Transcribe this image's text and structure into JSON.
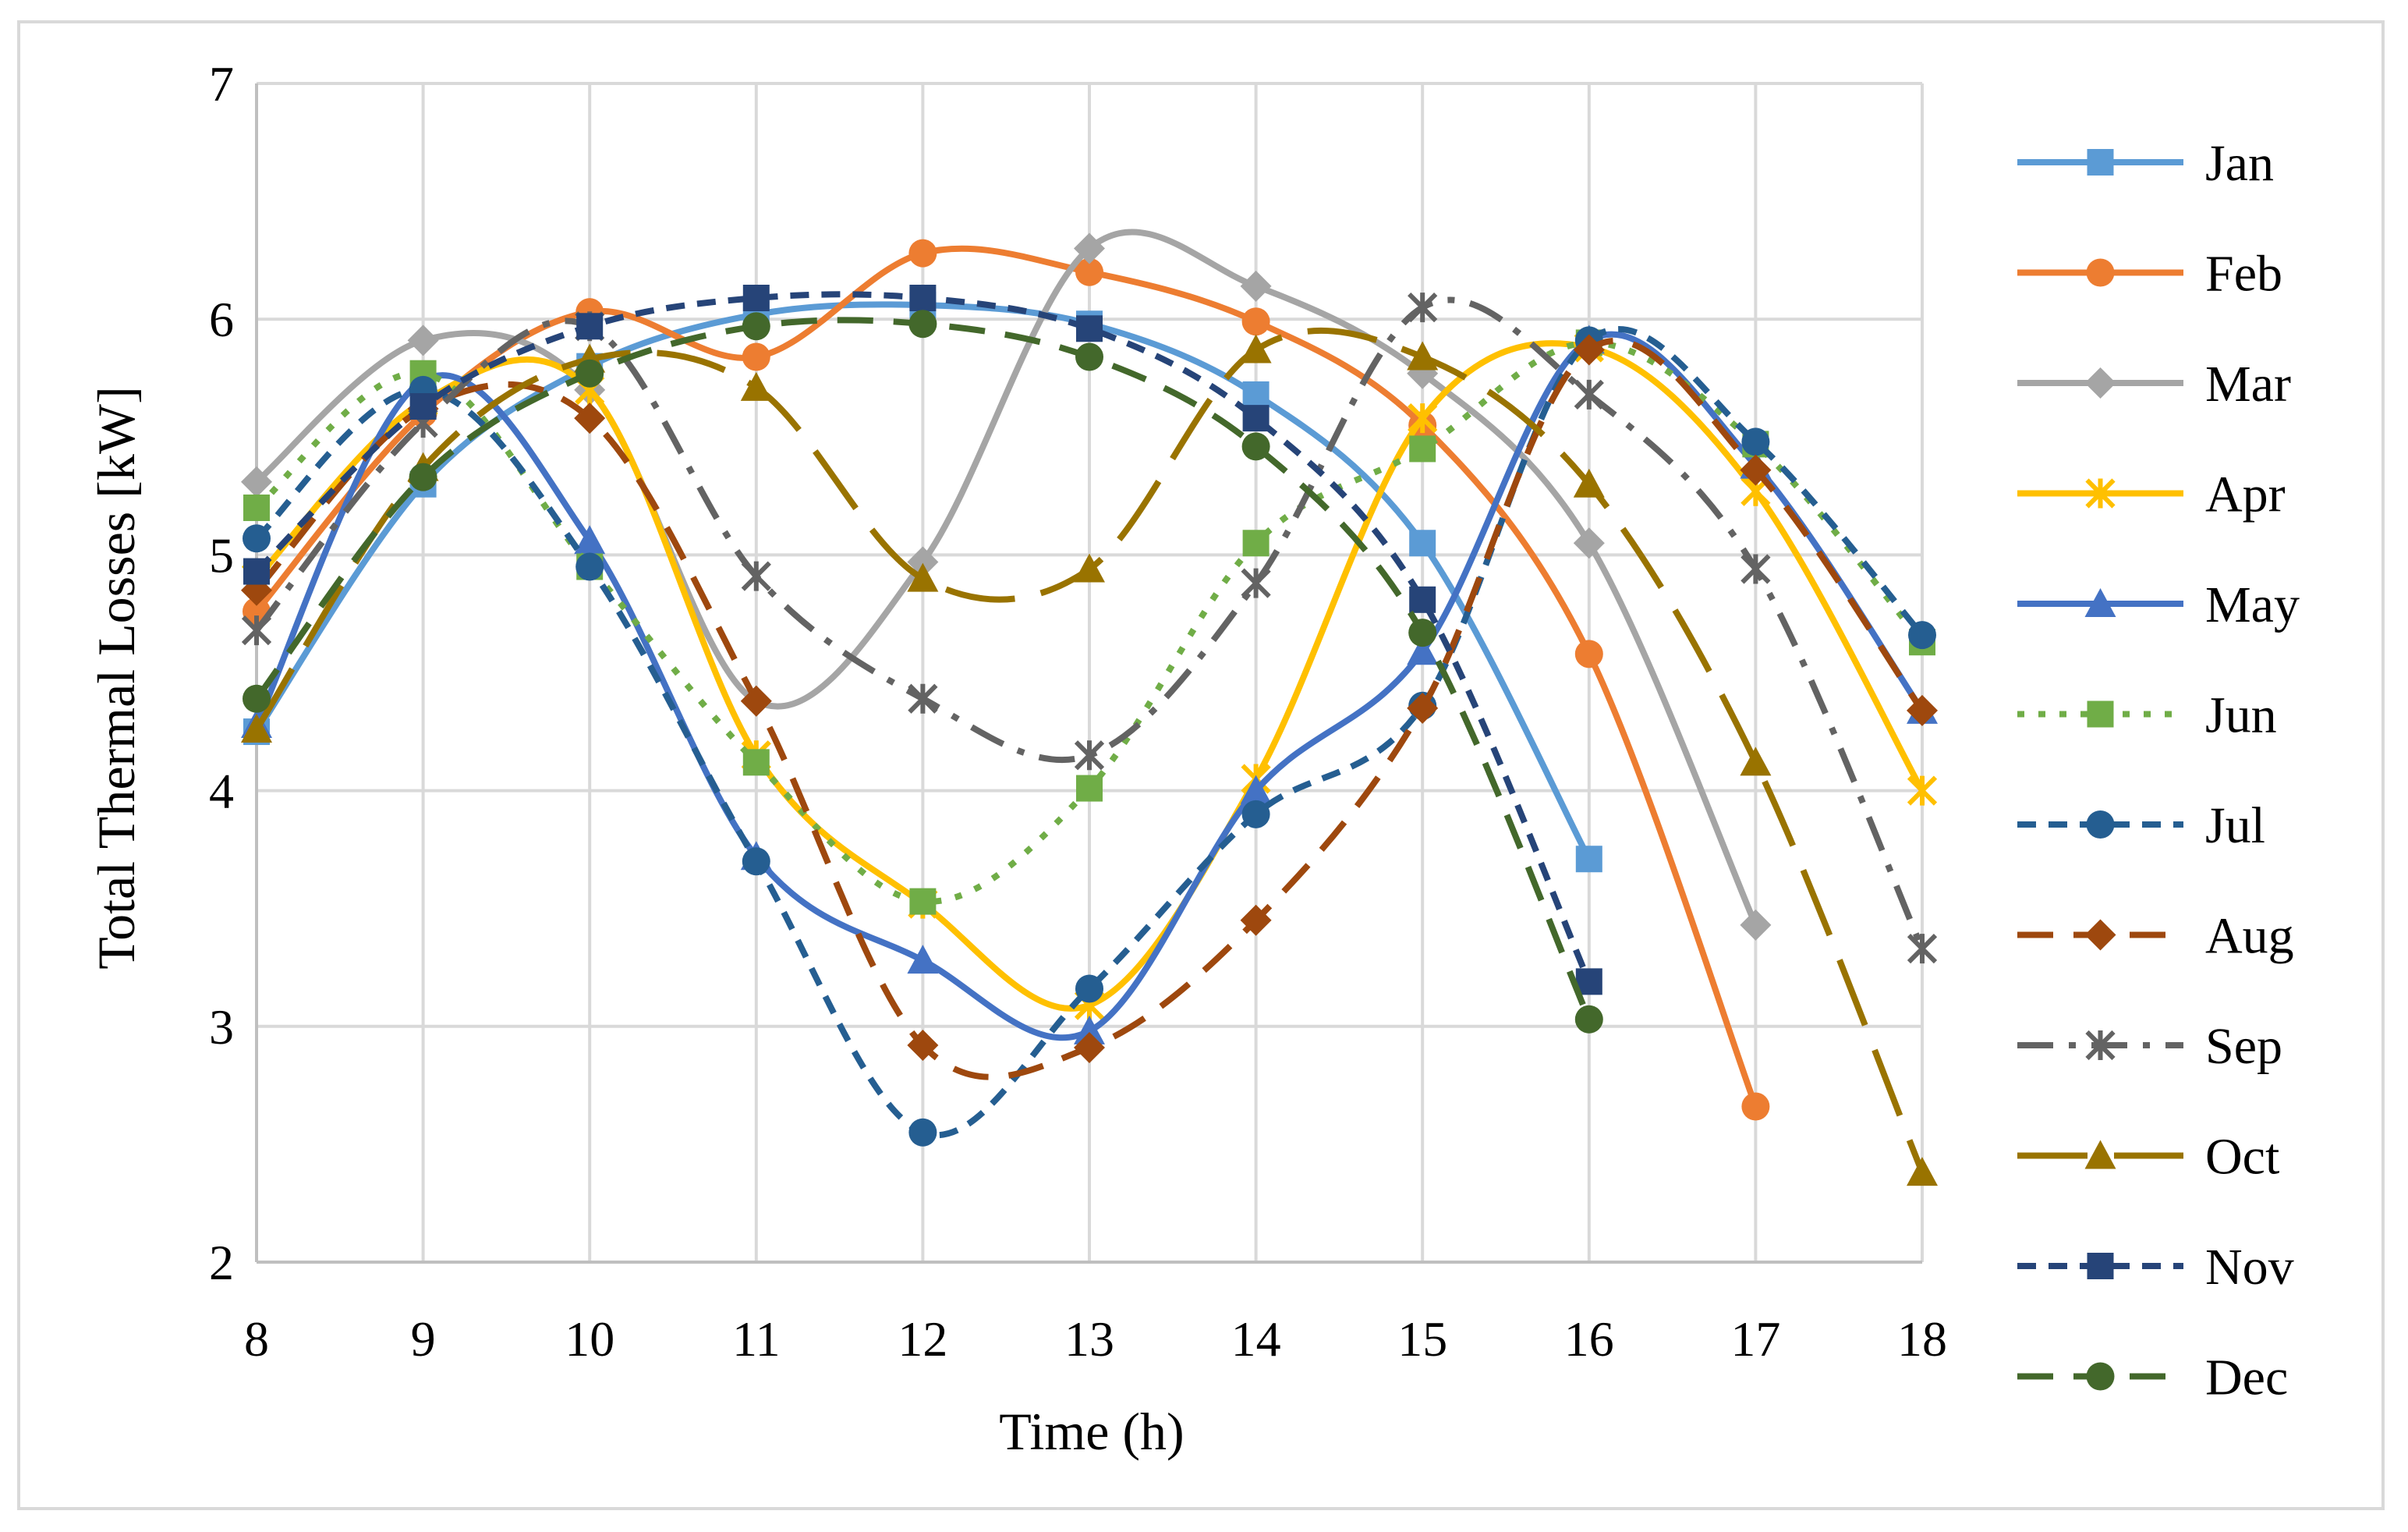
{
  "chart_data": {
    "type": "line",
    "title": "",
    "xlabel": "Time (h)",
    "ylabel": "Total Thermal Losses [kW]",
    "xlim": [
      8,
      18
    ],
    "ylim": [
      2,
      7
    ],
    "x_ticks": [
      "8",
      "9",
      "10",
      "11",
      "12",
      "13",
      "14",
      "15",
      "16",
      "17",
      "18"
    ],
    "y_ticks": [
      "2",
      "3",
      "4",
      "5",
      "6",
      "7"
    ],
    "grid": true,
    "legend_position": "right",
    "series": [
      {
        "name": "Jan",
        "color": "#5b9bd5",
        "dash": "solid",
        "marker": "square",
        "x": [
          8,
          9,
          10,
          11,
          12,
          13,
          14,
          15,
          16
        ],
        "values": [
          4.25,
          5.3,
          5.8,
          6.02,
          6.06,
          5.98,
          5.68,
          5.05,
          3.71
        ]
      },
      {
        "name": "Feb",
        "color": "#ed7d31",
        "dash": "solid",
        "marker": "circle",
        "x": [
          8,
          9,
          10,
          11,
          12,
          13,
          14,
          15,
          16,
          17
        ],
        "values": [
          4.76,
          5.6,
          6.03,
          5.84,
          6.28,
          6.2,
          5.99,
          5.55,
          4.58,
          2.66
        ]
      },
      {
        "name": "Mar",
        "color": "#a5a5a5",
        "dash": "solid",
        "marker": "diamond",
        "x": [
          8,
          9,
          10,
          11,
          12,
          13,
          14,
          15,
          16,
          17
        ],
        "values": [
          5.31,
          5.91,
          5.7,
          4.38,
          4.97,
          6.3,
          6.14,
          5.77,
          5.05,
          3.43
        ]
      },
      {
        "name": "Apr",
        "color": "#ffc000",
        "dash": "solid",
        "marker": "asterisk",
        "x": [
          8,
          9,
          10,
          11,
          12,
          13,
          14,
          15,
          16,
          17,
          18
        ],
        "values": [
          4.9,
          5.65,
          5.7,
          4.15,
          3.52,
          3.09,
          4.05,
          5.58,
          5.88,
          5.27,
          4.0
        ]
      },
      {
        "name": "May",
        "color": "#4472c4",
        "dash": "solid",
        "marker": "triangle",
        "x": [
          8,
          9,
          10,
          11,
          12,
          13,
          14,
          15,
          16,
          17,
          18
        ],
        "values": [
          4.28,
          5.74,
          5.06,
          3.72,
          3.28,
          2.98,
          4.0,
          4.59,
          5.91,
          5.38,
          4.34
        ]
      },
      {
        "name": "Jun",
        "color": "#70ad47",
        "dash": "dot",
        "marker": "square",
        "x": [
          8,
          9,
          10,
          11,
          12,
          13,
          14,
          15,
          16,
          17,
          18
        ],
        "values": [
          5.2,
          5.77,
          4.95,
          4.12,
          3.53,
          4.01,
          5.05,
          5.45,
          5.9,
          5.47,
          4.63
        ]
      },
      {
        "name": "Jul",
        "color": "#255e91",
        "dash": "short-dash",
        "marker": "circle",
        "x": [
          8,
          9,
          10,
          11,
          12,
          13,
          14,
          15,
          16,
          17,
          18
        ],
        "values": [
          5.07,
          5.7,
          4.95,
          3.7,
          2.55,
          3.16,
          3.9,
          4.36,
          5.91,
          5.48,
          4.66
        ]
      },
      {
        "name": "Aug",
        "color": "#9e480e",
        "dash": "dash",
        "marker": "diamond",
        "x": [
          8,
          9,
          10,
          11,
          12,
          13,
          14,
          15,
          16,
          17,
          18
        ],
        "values": [
          4.85,
          5.62,
          5.58,
          4.38,
          2.92,
          2.91,
          3.45,
          4.35,
          5.87,
          5.36,
          4.34
        ]
      },
      {
        "name": "Sep",
        "color": "#636363",
        "dash": "dash-dot",
        "marker": "asterisk",
        "x": [
          8,
          9,
          10,
          11,
          12,
          13,
          14,
          15,
          16,
          17,
          18
        ],
        "values": [
          4.68,
          5.56,
          5.97,
          4.91,
          4.39,
          4.15,
          4.88,
          6.05,
          5.68,
          4.94,
          3.33
        ]
      },
      {
        "name": "Oct",
        "color": "#997300",
        "dash": "long-dash",
        "marker": "triangle",
        "x": [
          8,
          9,
          10,
          11,
          12,
          13,
          14,
          15,
          16,
          17,
          18
        ],
        "values": [
          4.26,
          5.37,
          5.83,
          5.71,
          4.9,
          4.94,
          5.87,
          5.84,
          5.3,
          4.12,
          2.38
        ]
      },
      {
        "name": "Nov",
        "color": "#264478",
        "dash": "short-dash",
        "marker": "square",
        "x": [
          8,
          9,
          10,
          11,
          12,
          13,
          14,
          15,
          16
        ],
        "values": [
          4.93,
          5.63,
          5.97,
          6.09,
          6.09,
          5.96,
          5.58,
          4.81,
          3.19
        ]
      },
      {
        "name": "Dec",
        "color": "#43682b",
        "dash": "dash",
        "marker": "circle",
        "x": [
          8,
          9,
          10,
          11,
          12,
          13,
          14,
          15,
          16
        ],
        "values": [
          4.39,
          5.33,
          5.77,
          5.97,
          5.98,
          5.84,
          5.46,
          4.67,
          3.03
        ]
      }
    ]
  }
}
